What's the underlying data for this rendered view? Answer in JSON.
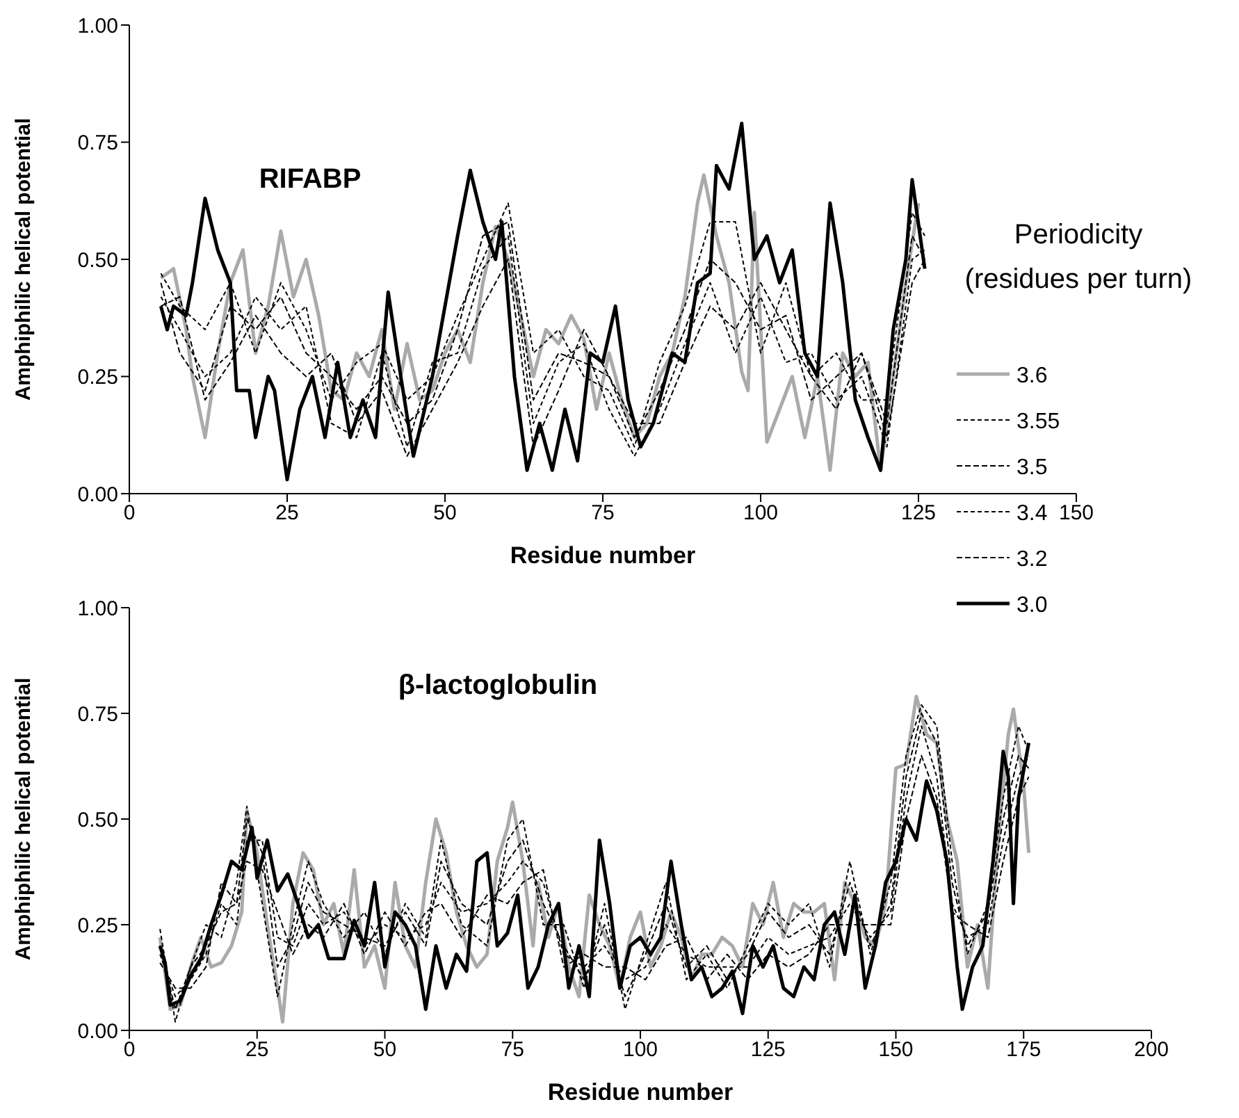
{
  "chart_data": [
    {
      "type": "line",
      "title": "RIFABP",
      "xlabel": "Residue number",
      "ylabel": "Amphiphilic helical potential",
      "legend_title": "Periodicity\n(residues per turn)",
      "legend": "right",
      "xlim": [
        0,
        150
      ],
      "xticks": [
        0,
        25,
        50,
        75,
        100,
        125,
        150
      ],
      "ylim": [
        0,
        1
      ],
      "yticks": [
        {
          "value": 0,
          "label": "0.00"
        },
        {
          "value": 0.25,
          "label": "0.25"
        },
        {
          "value": 0.5,
          "label": "0.50"
        },
        {
          "value": 0.75,
          "label": "0.75"
        },
        {
          "value": 1,
          "label": "1.00"
        }
      ],
      "grid": false,
      "marker": "none",
      "series": [
        {
          "name": "3.6",
          "color": "#aaaaaa",
          "line_style": "solid",
          "x": [
            5,
            7,
            9,
            10,
            12,
            14,
            16,
            18,
            20,
            22,
            24,
            26,
            28,
            30,
            32,
            34,
            36,
            38,
            40,
            42,
            44,
            46,
            48,
            50,
            52,
            54,
            56,
            58,
            60,
            62,
            64,
            66,
            68,
            70,
            72,
            74,
            76,
            78,
            80,
            82,
            84,
            86,
            88,
            90,
            91,
            93,
            95,
            97,
            98,
            99,
            101,
            103,
            105,
            107,
            109,
            111,
            113,
            115,
            117,
            119,
            121,
            123,
            125
          ],
          "values": [
            0.46,
            0.48,
            0.35,
            0.25,
            0.12,
            0.3,
            0.45,
            0.52,
            0.3,
            0.4,
            0.56,
            0.42,
            0.5,
            0.38,
            0.22,
            0.2,
            0.3,
            0.25,
            0.35,
            0.18,
            0.32,
            0.2,
            0.22,
            0.3,
            0.35,
            0.28,
            0.45,
            0.57,
            0.5,
            0.38,
            0.25,
            0.35,
            0.32,
            0.38,
            0.33,
            0.18,
            0.3,
            0.2,
            0.12,
            0.15,
            0.25,
            0.3,
            0.42,
            0.62,
            0.68,
            0.55,
            0.45,
            0.26,
            0.22,
            0.6,
            0.11,
            0.18,
            0.25,
            0.12,
            0.25,
            0.05,
            0.3,
            0.25,
            0.28,
            0.05,
            0.25,
            0.45,
            0.62
          ]
        },
        {
          "name": "3.55",
          "color": "#000000",
          "line_style": "dashed",
          "x": [
            5,
            8,
            12,
            16,
            20,
            24,
            28,
            32,
            36,
            40,
            44,
            48,
            52,
            56,
            60,
            64,
            68,
            72,
            76,
            80,
            84,
            88,
            92,
            96,
            100,
            104,
            108,
            112,
            116,
            120,
            124,
            126
          ],
          "values": [
            0.47,
            0.4,
            0.35,
            0.45,
            0.3,
            0.45,
            0.35,
            0.2,
            0.28,
            0.32,
            0.2,
            0.25,
            0.38,
            0.5,
            0.62,
            0.3,
            0.35,
            0.25,
            0.22,
            0.1,
            0.28,
            0.4,
            0.58,
            0.58,
            0.3,
            0.45,
            0.25,
            0.3,
            0.2,
            0.2,
            0.6,
            0.55
          ]
        },
        {
          "name": "3.5",
          "color": "#000000",
          "line_style": "dashed",
          "x": [
            5,
            8,
            12,
            16,
            20,
            24,
            28,
            32,
            36,
            40,
            44,
            48,
            52,
            56,
            60,
            64,
            68,
            72,
            76,
            80,
            84,
            88,
            92,
            96,
            100,
            104,
            108,
            112,
            116,
            120,
            124,
            126
          ],
          "values": [
            0.45,
            0.3,
            0.22,
            0.4,
            0.35,
            0.42,
            0.3,
            0.25,
            0.18,
            0.25,
            0.15,
            0.2,
            0.35,
            0.55,
            0.58,
            0.2,
            0.3,
            0.28,
            0.25,
            0.12,
            0.22,
            0.35,
            0.5,
            0.45,
            0.35,
            0.38,
            0.2,
            0.25,
            0.3,
            0.15,
            0.55,
            0.5
          ]
        },
        {
          "name": "3.4",
          "color": "#000000",
          "line_style": "dashed",
          "x": [
            5,
            8,
            12,
            16,
            20,
            24,
            28,
            32,
            36,
            40,
            44,
            48,
            52,
            56,
            60,
            64,
            68,
            72,
            76,
            80,
            84,
            88,
            92,
            96,
            100,
            104,
            108,
            112,
            116,
            120,
            124,
            126
          ],
          "values": [
            0.42,
            0.35,
            0.25,
            0.3,
            0.42,
            0.35,
            0.4,
            0.15,
            0.12,
            0.3,
            0.1,
            0.28,
            0.3,
            0.48,
            0.55,
            0.15,
            0.28,
            0.32,
            0.18,
            0.08,
            0.18,
            0.32,
            0.45,
            0.3,
            0.42,
            0.28,
            0.3,
            0.2,
            0.25,
            0.1,
            0.5,
            0.52
          ]
        },
        {
          "name": "3.2",
          "color": "#000000",
          "line_style": "dashed",
          "x": [
            5,
            8,
            12,
            16,
            20,
            24,
            28,
            32,
            36,
            40,
            44,
            48,
            52,
            56,
            60,
            64,
            68,
            72,
            76,
            80,
            84,
            88,
            92,
            96,
            100,
            104,
            108,
            112,
            116,
            120,
            124,
            126
          ],
          "values": [
            0.4,
            0.42,
            0.2,
            0.28,
            0.38,
            0.3,
            0.25,
            0.3,
            0.15,
            0.22,
            0.08,
            0.18,
            0.28,
            0.4,
            0.5,
            0.1,
            0.22,
            0.35,
            0.25,
            0.15,
            0.15,
            0.28,
            0.4,
            0.35,
            0.45,
            0.35,
            0.25,
            0.18,
            0.3,
            0.12,
            0.45,
            0.5
          ]
        },
        {
          "name": "3.0",
          "color": "#000000",
          "line_style": "solid",
          "x": [
            5,
            6,
            7,
            9,
            10,
            12,
            14,
            16,
            17,
            19,
            20,
            22,
            23,
            25,
            27,
            29,
            31,
            33,
            35,
            37,
            39,
            41,
            43,
            45,
            48,
            50,
            52,
            54,
            56,
            58,
            59,
            61,
            63,
            65,
            67,
            69,
            71,
            73,
            75,
            77,
            79,
            81,
            83,
            86,
            88,
            90,
            92,
            93,
            95,
            97,
            99,
            101,
            103,
            105,
            107,
            109,
            111,
            113,
            115,
            117,
            119,
            121,
            123,
            124,
            126
          ],
          "values": [
            0.4,
            0.35,
            0.4,
            0.38,
            0.45,
            0.63,
            0.52,
            0.45,
            0.22,
            0.22,
            0.12,
            0.25,
            0.22,
            0.03,
            0.18,
            0.25,
            0.12,
            0.28,
            0.12,
            0.2,
            0.12,
            0.43,
            0.25,
            0.08,
            0.25,
            0.4,
            0.55,
            0.69,
            0.58,
            0.5,
            0.58,
            0.25,
            0.05,
            0.15,
            0.05,
            0.18,
            0.07,
            0.3,
            0.28,
            0.4,
            0.2,
            0.1,
            0.15,
            0.3,
            0.28,
            0.45,
            0.47,
            0.7,
            0.65,
            0.79,
            0.5,
            0.55,
            0.45,
            0.52,
            0.3,
            0.25,
            0.62,
            0.45,
            0.2,
            0.12,
            0.05,
            0.35,
            0.5,
            0.67,
            0.48
          ]
        }
      ]
    },
    {
      "type": "line",
      "title": "β-lactoglobulin",
      "xlabel": "Residue number",
      "ylabel": "Amphiphilic helical potential",
      "xlim": [
        0,
        200
      ],
      "xticks": [
        0,
        25,
        50,
        75,
        100,
        125,
        150,
        175,
        200
      ],
      "ylim": [
        0,
        1
      ],
      "yticks": [
        {
          "value": 0,
          "label": "0.00"
        },
        {
          "value": 0.25,
          "label": "0.25"
        },
        {
          "value": 0.5,
          "label": "0.50"
        },
        {
          "value": 0.75,
          "label": "0.75"
        },
        {
          "value": 1,
          "label": "1.00"
        }
      ],
      "grid": false,
      "marker": "none",
      "series": [
        {
          "name": "3.6",
          "color": "#aaaaaa",
          "line_style": "solid",
          "x": [
            6,
            8,
            10,
            12,
            14,
            16,
            18,
            20,
            22,
            23,
            25,
            27,
            29,
            30,
            32,
            34,
            36,
            38,
            40,
            42,
            44,
            46,
            48,
            50,
            52,
            54,
            56,
            58,
            60,
            62,
            64,
            66,
            68,
            70,
            72,
            74,
            75,
            77,
            79,
            80,
            82,
            84,
            86,
            88,
            90,
            92,
            94,
            96,
            98,
            100,
            102,
            104,
            106,
            108,
            110,
            112,
            114,
            116,
            118,
            120,
            122,
            124,
            126,
            128,
            130,
            132,
            134,
            136,
            138,
            140,
            142,
            144,
            146,
            148,
            150,
            152,
            154,
            156,
            158,
            160,
            162,
            164,
            166,
            168,
            170,
            172,
            173,
            175,
            176
          ],
          "values": [
            0.22,
            0.05,
            0.06,
            0.15,
            0.22,
            0.15,
            0.16,
            0.2,
            0.28,
            0.52,
            0.42,
            0.25,
            0.1,
            0.02,
            0.3,
            0.42,
            0.38,
            0.25,
            0.3,
            0.18,
            0.38,
            0.15,
            0.2,
            0.1,
            0.35,
            0.2,
            0.15,
            0.35,
            0.5,
            0.42,
            0.28,
            0.2,
            0.15,
            0.18,
            0.4,
            0.48,
            0.54,
            0.4,
            0.2,
            0.35,
            0.22,
            0.3,
            0.15,
            0.08,
            0.32,
            0.25,
            0.2,
            0.1,
            0.22,
            0.28,
            0.15,
            0.2,
            0.28,
            0.22,
            0.12,
            0.18,
            0.18,
            0.22,
            0.2,
            0.15,
            0.3,
            0.25,
            0.35,
            0.22,
            0.3,
            0.28,
            0.28,
            0.3,
            0.12,
            0.35,
            0.3,
            0.22,
            0.2,
            0.3,
            0.62,
            0.63,
            0.79,
            0.7,
            0.68,
            0.5,
            0.4,
            0.15,
            0.25,
            0.1,
            0.45,
            0.7,
            0.76,
            0.58,
            0.42
          ]
        },
        {
          "name": "3.55",
          "color": "#000000",
          "line_style": "dashed",
          "x": [
            6,
            9,
            12,
            15,
            18,
            21,
            23,
            26,
            29,
            32,
            35,
            38,
            42,
            46,
            50,
            54,
            58,
            61,
            65,
            70,
            74,
            77,
            81,
            85,
            89,
            93,
            97,
            101,
            105,
            109,
            113,
            117,
            121,
            125,
            129,
            133,
            137,
            141,
            145,
            149,
            152,
            155,
            158,
            161,
            164,
            168,
            171,
            174,
            176
          ],
          "values": [
            0.24,
            0.02,
            0.15,
            0.25,
            0.22,
            0.35,
            0.53,
            0.3,
            0.08,
            0.25,
            0.4,
            0.3,
            0.22,
            0.28,
            0.18,
            0.3,
            0.22,
            0.45,
            0.25,
            0.2,
            0.45,
            0.5,
            0.25,
            0.25,
            0.1,
            0.3,
            0.05,
            0.2,
            0.35,
            0.12,
            0.18,
            0.1,
            0.2,
            0.3,
            0.25,
            0.3,
            0.15,
            0.4,
            0.18,
            0.35,
            0.65,
            0.77,
            0.72,
            0.4,
            0.18,
            0.3,
            0.55,
            0.72,
            0.66
          ]
        },
        {
          "name": "3.5",
          "color": "#000000",
          "line_style": "dashed",
          "x": [
            6,
            9,
            12,
            15,
            18,
            21,
            23,
            26,
            29,
            32,
            35,
            38,
            42,
            46,
            50,
            54,
            58,
            61,
            65,
            70,
            74,
            77,
            81,
            85,
            89,
            93,
            97,
            101,
            105,
            109,
            113,
            117,
            121,
            125,
            129,
            133,
            137,
            141,
            145,
            149,
            152,
            155,
            158,
            161,
            164,
            168,
            171,
            174,
            176
          ],
          "values": [
            0.2,
            0.05,
            0.15,
            0.2,
            0.28,
            0.3,
            0.5,
            0.42,
            0.15,
            0.22,
            0.35,
            0.28,
            0.25,
            0.22,
            0.2,
            0.28,
            0.2,
            0.4,
            0.3,
            0.25,
            0.4,
            0.45,
            0.3,
            0.2,
            0.12,
            0.25,
            0.08,
            0.18,
            0.3,
            0.15,
            0.2,
            0.12,
            0.18,
            0.28,
            0.22,
            0.25,
            0.18,
            0.35,
            0.2,
            0.3,
            0.6,
            0.75,
            0.68,
            0.35,
            0.2,
            0.28,
            0.5,
            0.65,
            0.62
          ]
        },
        {
          "name": "3.4",
          "color": "#000000",
          "line_style": "dashed",
          "x": [
            6,
            9,
            12,
            15,
            18,
            21,
            23,
            26,
            29,
            32,
            35,
            38,
            42,
            46,
            50,
            54,
            58,
            61,
            65,
            70,
            74,
            77,
            81,
            85,
            89,
            93,
            97,
            101,
            105,
            109,
            113,
            117,
            121,
            125,
            129,
            133,
            137,
            141,
            145,
            149,
            152,
            155,
            158,
            161,
            164,
            168,
            171,
            174,
            176
          ],
          "values": [
            0.18,
            0.08,
            0.12,
            0.18,
            0.3,
            0.25,
            0.45,
            0.45,
            0.22,
            0.2,
            0.3,
            0.25,
            0.28,
            0.2,
            0.25,
            0.22,
            0.25,
            0.35,
            0.28,
            0.3,
            0.35,
            0.4,
            0.35,
            0.18,
            0.15,
            0.2,
            0.12,
            0.15,
            0.25,
            0.18,
            0.15,
            0.15,
            0.15,
            0.22,
            0.18,
            0.2,
            0.22,
            0.3,
            0.22,
            0.28,
            0.55,
            0.72,
            0.6,
            0.3,
            0.22,
            0.25,
            0.45,
            0.6,
            0.65
          ]
        },
        {
          "name": "3.2",
          "color": "#000000",
          "line_style": "dashed",
          "x": [
            6,
            9,
            12,
            15,
            18,
            21,
            23,
            26,
            29,
            32,
            35,
            38,
            42,
            46,
            50,
            54,
            58,
            61,
            65,
            70,
            74,
            77,
            81,
            85,
            89,
            93,
            97,
            101,
            105,
            109,
            113,
            117,
            121,
            125,
            129,
            133,
            137,
            141,
            145,
            149,
            152,
            155,
            158,
            161,
            164,
            168,
            171,
            174,
            176
          ],
          "values": [
            0.16,
            0.1,
            0.1,
            0.15,
            0.35,
            0.3,
            0.4,
            0.38,
            0.28,
            0.18,
            0.25,
            0.22,
            0.3,
            0.18,
            0.28,
            0.2,
            0.28,
            0.3,
            0.22,
            0.32,
            0.3,
            0.35,
            0.38,
            0.15,
            0.18,
            0.15,
            0.15,
            0.12,
            0.2,
            0.22,
            0.12,
            0.18,
            0.12,
            0.18,
            0.15,
            0.18,
            0.25,
            0.25,
            0.25,
            0.25,
            0.5,
            0.65,
            0.55,
            0.28,
            0.25,
            0.22,
            0.4,
            0.55,
            0.6
          ]
        },
        {
          "name": "3.0",
          "color": "#000000",
          "line_style": "solid",
          "x": [
            6,
            7,
            8,
            10,
            12,
            14,
            16,
            18,
            20,
            22,
            24,
            25,
            27,
            29,
            31,
            33,
            35,
            37,
            39,
            42,
            44,
            46,
            48,
            50,
            52,
            54,
            56,
            58,
            60,
            62,
            64,
            66,
            68,
            70,
            72,
            74,
            76,
            78,
            80,
            82,
            84,
            86,
            88,
            90,
            92,
            94,
            96,
            98,
            100,
            102,
            104,
            106,
            108,
            110,
            112,
            114,
            116,
            118,
            120,
            122,
            124,
            126,
            128,
            130,
            132,
            134,
            136,
            138,
            140,
            142,
            144,
            146,
            148,
            150,
            152,
            154,
            156,
            158,
            160,
            162,
            163,
            165,
            167,
            169,
            171,
            172,
            173,
            174,
            176
          ],
          "values": [
            0.2,
            0.16,
            0.06,
            0.07,
            0.13,
            0.17,
            0.25,
            0.32,
            0.4,
            0.38,
            0.48,
            0.36,
            0.45,
            0.33,
            0.37,
            0.3,
            0.22,
            0.25,
            0.17,
            0.17,
            0.26,
            0.2,
            0.35,
            0.15,
            0.28,
            0.25,
            0.2,
            0.05,
            0.2,
            0.1,
            0.18,
            0.14,
            0.4,
            0.42,
            0.2,
            0.23,
            0.32,
            0.1,
            0.15,
            0.25,
            0.3,
            0.1,
            0.2,
            0.08,
            0.45,
            0.3,
            0.1,
            0.2,
            0.22,
            0.18,
            0.22,
            0.4,
            0.25,
            0.12,
            0.15,
            0.08,
            0.1,
            0.14,
            0.04,
            0.2,
            0.15,
            0.2,
            0.1,
            0.08,
            0.15,
            0.12,
            0.25,
            0.28,
            0.18,
            0.32,
            0.1,
            0.2,
            0.35,
            0.4,
            0.5,
            0.45,
            0.59,
            0.52,
            0.4,
            0.15,
            0.05,
            0.15,
            0.2,
            0.4,
            0.66,
            0.6,
            0.3,
            0.55,
            0.68
          ]
        }
      ]
    }
  ]
}
